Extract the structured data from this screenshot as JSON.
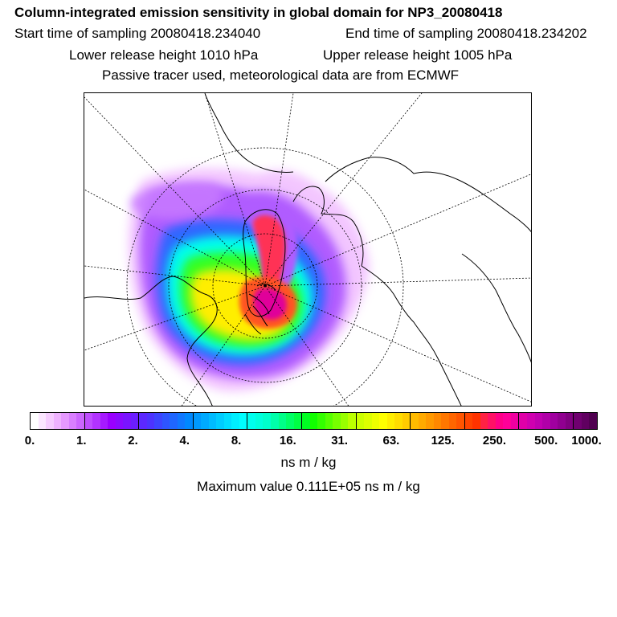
{
  "header": {
    "title": "Column-integrated emission sensitivity in global domain for NP3_20080418",
    "start_time": "Start time of sampling 20080418.234040",
    "end_time": "End time of sampling 20080418.234202",
    "lower_release": "Lower release height 1010 hPa",
    "upper_release": "Upper release height 1005 hPa",
    "tracer_note": "Passive tracer used, meteorological data are from ECMWF"
  },
  "colorbar": {
    "ticks": [
      "0.",
      "1.",
      "2.",
      "4.",
      "8.",
      "16.",
      "31.",
      "63.",
      "125.",
      "250.",
      "500.",
      "1000."
    ],
    "colors": [
      "#ffffff",
      "#fbe6ff",
      "#f6ccff",
      "#efb2ff",
      "#e699ff",
      "#d97fff",
      "#cc66ff",
      "#bf4dff",
      "#b233ff",
      "#a61aff",
      "#9900ff",
      "#8a0aff",
      "#7a14ff",
      "#6b1eff",
      "#5c28ff",
      "#4d33ff",
      "#3d44ff",
      "#2e55ff",
      "#1f66ff",
      "#1077ff",
      "#0088ff",
      "#0099ff",
      "#00aaff",
      "#00bbff",
      "#00ccff",
      "#00ddff",
      "#00eeff",
      "#00ffff",
      "#00ffee",
      "#00ffdd",
      "#00ffcc",
      "#00ffaa",
      "#00ff88",
      "#00ff66",
      "#00ff44",
      "#00ff22",
      "#11ff00",
      "#33ff00",
      "#55ff00",
      "#77ff00",
      "#99ff00",
      "#bbff00",
      "#ccff00",
      "#ddff00",
      "#eeff00",
      "#ffff00",
      "#ffee00",
      "#ffdd00",
      "#ffcc00",
      "#ffbb00",
      "#ffaa00",
      "#ff9900",
      "#ff8800",
      "#ff7700",
      "#ff6600",
      "#ff5500",
      "#ff4400",
      "#ff3300",
      "#ff2244",
      "#ff1166",
      "#ff0088",
      "#ff0099",
      "#f000a0",
      "#e000a8",
      "#d000b0",
      "#c000b0",
      "#b000a8",
      "#a000a0",
      "#900090",
      "#800080",
      "#700070",
      "#600060",
      "#500050"
    ],
    "units": "ns m / kg",
    "max_value": "Maximum value  0.111E+05 ns m / kg"
  },
  "map": {
    "projection": "polar stereographic, north pole centered",
    "coastline_color": "#000000",
    "grid_style": "dashed"
  }
}
